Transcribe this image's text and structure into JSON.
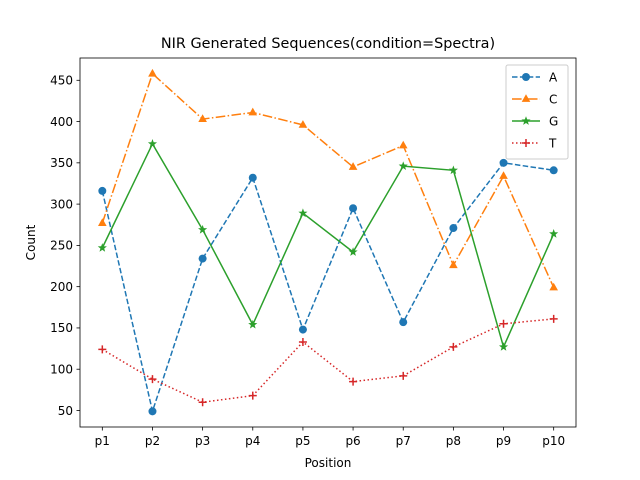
{
  "chart_data": {
    "type": "line",
    "title": "NIR Generated Sequences(condition=Spectra)",
    "xlabel": "Position",
    "ylabel": "Count",
    "categories": [
      "p1",
      "p2",
      "p3",
      "p4",
      "p5",
      "p6",
      "p7",
      "p8",
      "p9",
      "p10"
    ],
    "ylim": [
      30,
      477
    ],
    "yticks": [
      50,
      100,
      150,
      200,
      250,
      300,
      350,
      400,
      450
    ],
    "grid": false,
    "legend_position": "top-right",
    "series": [
      {
        "name": "A",
        "color": "#1f77b4",
        "dash": "dashed",
        "marker": "circle",
        "values": [
          316,
          49,
          234,
          332,
          148,
          295,
          157,
          271,
          350,
          341
        ]
      },
      {
        "name": "C",
        "color": "#ff7f0e",
        "dash": "dashdot",
        "marker": "triangle",
        "values": [
          277,
          458,
          403,
          411,
          396,
          345,
          371,
          226,
          334,
          199
        ]
      },
      {
        "name": "G",
        "color": "#2ca02c",
        "dash": "solid",
        "marker": "star",
        "values": [
          247,
          373,
          269,
          154,
          289,
          242,
          346,
          341,
          127,
          264
        ]
      },
      {
        "name": "T",
        "color": "#d62728",
        "dash": "dotted",
        "marker": "plus",
        "values": [
          124,
          88,
          60,
          68,
          133,
          85,
          92,
          127,
          155,
          161
        ]
      }
    ]
  }
}
